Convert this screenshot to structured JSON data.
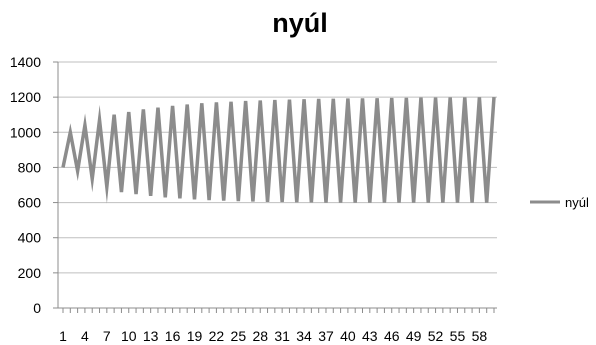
{
  "chart_data": {
    "type": "line",
    "title": "nyúl",
    "xlabel": "",
    "ylabel": "",
    "ylim": [
      0,
      1400
    ],
    "yticks": [
      0,
      200,
      400,
      600,
      800,
      1000,
      1200,
      1400
    ],
    "xtick_labels": [
      "1",
      "4",
      "7",
      "10",
      "13",
      "16",
      "19",
      "22",
      "25",
      "28",
      "31",
      "34",
      "37",
      "40",
      "43",
      "46",
      "49",
      "52",
      "55",
      "58"
    ],
    "x": [
      1,
      2,
      3,
      4,
      5,
      6,
      7,
      8,
      9,
      10,
      11,
      12,
      13,
      14,
      15,
      16,
      17,
      18,
      19,
      20,
      21,
      22,
      23,
      24,
      25,
      26,
      27,
      28,
      29,
      30,
      31,
      32,
      33,
      34,
      35,
      36,
      37,
      38,
      39,
      40,
      41,
      42,
      43,
      44,
      45,
      46,
      47,
      48,
      49,
      50,
      51,
      52,
      53,
      54,
      55,
      56,
      57,
      58,
      59,
      60
    ],
    "grid": true,
    "legend_position": "right",
    "series": [
      {
        "name": "nyúl",
        "color": "#8c8c8c",
        "values": [
          800,
          1000,
          780,
          1040,
          735,
          1070,
          690,
          1100,
          660,
          1115,
          648,
          1130,
          638,
          1140,
          630,
          1150,
          624,
          1158,
          618,
          1165,
          614,
          1170,
          611,
          1174,
          608,
          1178,
          606,
          1181,
          604,
          1184,
          603,
          1186,
          602,
          1188,
          601,
          1190,
          600,
          1191,
          600,
          1192,
          600,
          1193,
          600,
          1194,
          600,
          1195,
          600,
          1196,
          600,
          1197,
          600,
          1197,
          600,
          1198,
          600,
          1198,
          600,
          1199,
          600,
          1200
        ]
      }
    ]
  }
}
